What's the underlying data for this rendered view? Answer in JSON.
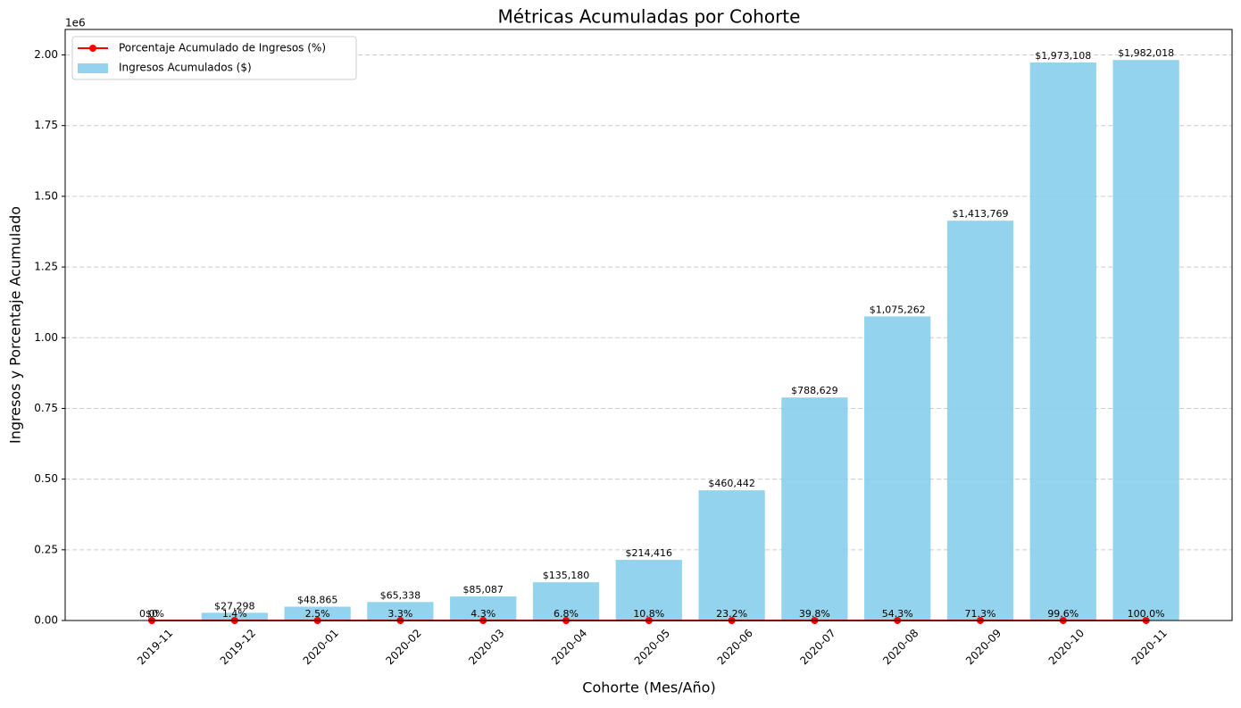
{
  "chart_data": {
    "type": "bar",
    "title": "Métricas Acumuladas por Cohorte",
    "x_label": "Cohorte (Mes/Año)",
    "y_label": "Ingresos y Porcentaje Acumulado",
    "y_offset_label": "1e6",
    "categories": [
      "2019-11",
      "2019-12",
      "2020-01",
      "2020-02",
      "2020-03",
      "2020-04",
      "2020-05",
      "2020-06",
      "2020-07",
      "2020-08",
      "2020-09",
      "2020-10",
      "2020-11"
    ],
    "series": [
      {
        "name": "Porcentaje Acumulado de Ingresos (%)",
        "type": "line",
        "color": "#ff0000",
        "values": [
          0,
          1.4,
          2.5,
          3.3,
          4.3,
          6.8,
          10.8,
          23.2,
          39.8,
          54.3,
          71.3,
          99.6,
          100.0
        ],
        "value_labels": [
          "0.0%",
          "1.4%",
          "2.5%",
          "3.3%",
          "4.3%",
          "6.8%",
          "10.8%",
          "23.2%",
          "39.8%",
          "54.3%",
          "71.3%",
          "99.6%",
          "100.0%"
        ]
      },
      {
        "name": "Ingresos Acumulados ($)",
        "type": "bar",
        "color": "#87ceeb",
        "values": [
          0,
          27298,
          48865,
          65338,
          85087,
          135180,
          214416,
          460442,
          788629,
          1075262,
          1413769,
          1973108,
          1982018
        ],
        "value_labels": [
          "$0",
          "$27,298",
          "$48,865",
          "$65,338",
          "$85,087",
          "$135,180",
          "$214,416",
          "$460,442",
          "$788,629",
          "$1,075,262",
          "$1,413,769",
          "$1,973,108",
          "$1,982,018"
        ]
      }
    ],
    "ylim": [
      0,
      2090000
    ],
    "yticks": [
      {
        "value": 0,
        "label": "0.00"
      },
      {
        "value": 250000,
        "label": "0.25"
      },
      {
        "value": 500000,
        "label": "0.50"
      },
      {
        "value": 750000,
        "label": "0.75"
      },
      {
        "value": 1000000,
        "label": "1.00"
      },
      {
        "value": 1250000,
        "label": "1.25"
      },
      {
        "value": 1500000,
        "label": "1.50"
      },
      {
        "value": 1750000,
        "label": "1.75"
      },
      {
        "value": 2000000,
        "label": "2.00"
      }
    ],
    "grid": true,
    "legend": "upper left"
  }
}
